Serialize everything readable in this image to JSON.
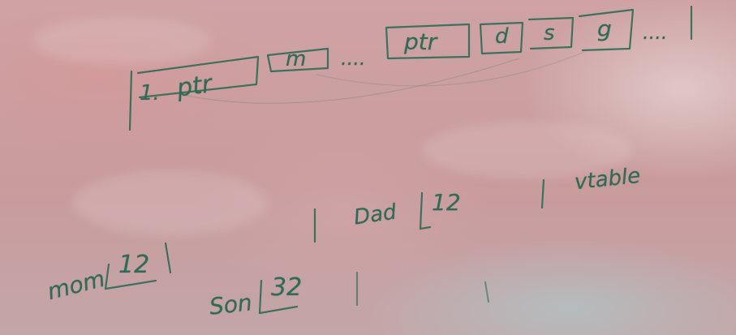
{
  "board": {
    "top_row": [
      "1.",
      "ptr",
      "m",
      "....",
      "ptr",
      "d",
      "s",
      "g",
      "...."
    ],
    "labels": {
      "dad": "Dad",
      "dad_size": "12",
      "vtable": "vtable",
      "mom": "mom",
      "mom_size": "12",
      "son": "Son",
      "son_size": "32"
    }
  }
}
